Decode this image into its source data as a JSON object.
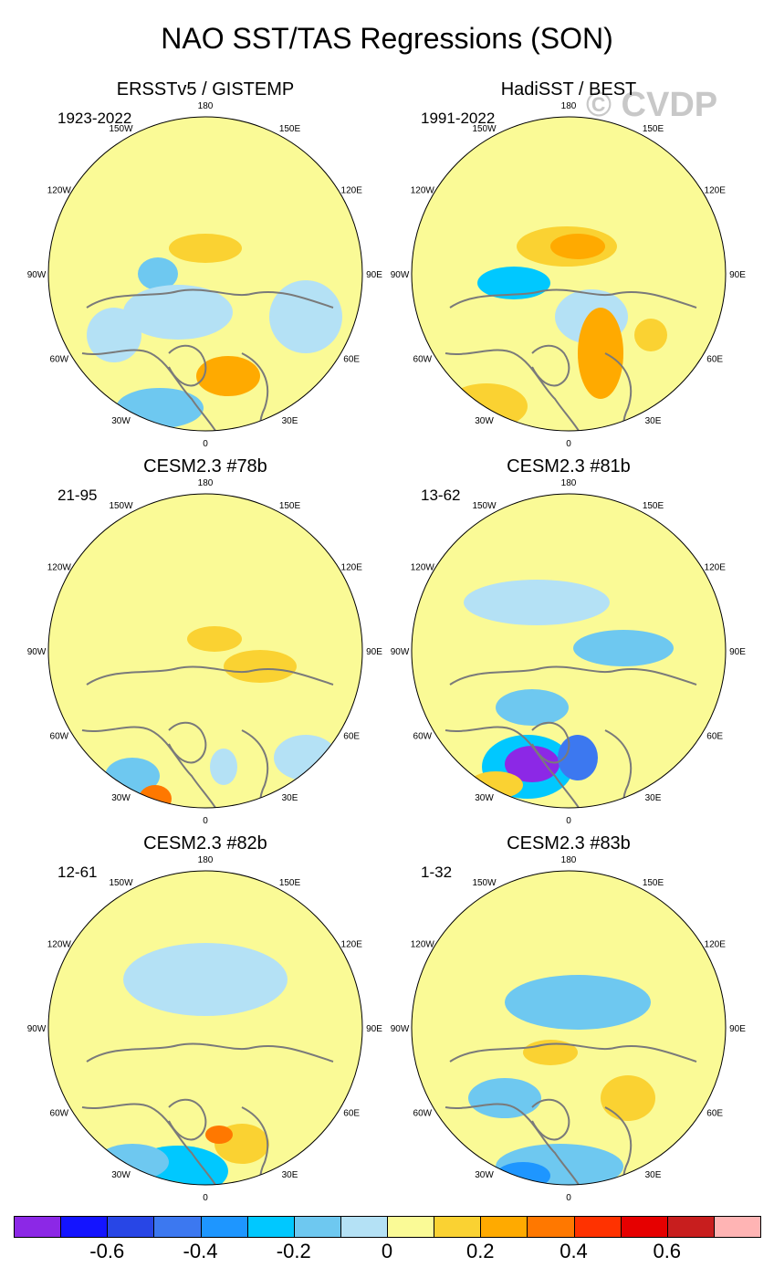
{
  "title": "NAO SST/TAS Regressions (SON)",
  "watermark": "© CVDP",
  "longitude_labels": [
    "180",
    "150E",
    "120E",
    "90E",
    "60E",
    "30E",
    "0",
    "30W",
    "60W",
    "90W",
    "120W",
    "150W"
  ],
  "panels": [
    {
      "title": "ERSSTv5 / GISTEMP",
      "years": "1923-2022"
    },
    {
      "title": "HadiSST / BEST",
      "years": "1991-2022"
    },
    {
      "title": "CESM2.3 #78b",
      "years": "21-95"
    },
    {
      "title": "CESM2.3 #81b",
      "years": "13-62"
    },
    {
      "title": "CESM2.3 #82b",
      "years": "12-61"
    },
    {
      "title": "CESM2.3 #83b",
      "years": "1-32"
    }
  ],
  "colorbar": {
    "colors": [
      "#8c28e6",
      "#1414ff",
      "#2846e6",
      "#3c78f0",
      "#1e96ff",
      "#00c8ff",
      "#6ec8f0",
      "#b4e1f5",
      "#fafa96",
      "#fad232",
      "#ffaa00",
      "#ff7800",
      "#ff3200",
      "#e60000",
      "#c81e1e",
      "#ffb4b4"
    ],
    "labels": [
      "-0.6",
      "-0.4",
      "-0.2",
      "0",
      "0.2",
      "0.4",
      "0.6"
    ]
  },
  "chart_data": {
    "type": "heatmap",
    "title": "NAO SST/TAS Regressions (SON)",
    "projection": "north-polar-stereographic",
    "contour_levels": [
      -0.7,
      -0.6,
      -0.5,
      -0.4,
      -0.3,
      -0.2,
      -0.1,
      0,
      0.1,
      0.2,
      0.3,
      0.4,
      0.5,
      0.6,
      0.7
    ],
    "colorbar_labels": [
      -0.6,
      -0.4,
      -0.2,
      0,
      0.2,
      0.4,
      0.6
    ],
    "datasets": [
      "ERSSTv5 / GISTEMP",
      "HadiSST / BEST",
      "CESM2.3 #78b",
      "CESM2.3 #81b",
      "CESM2.3 #82b",
      "CESM2.3 #83b"
    ]
  }
}
